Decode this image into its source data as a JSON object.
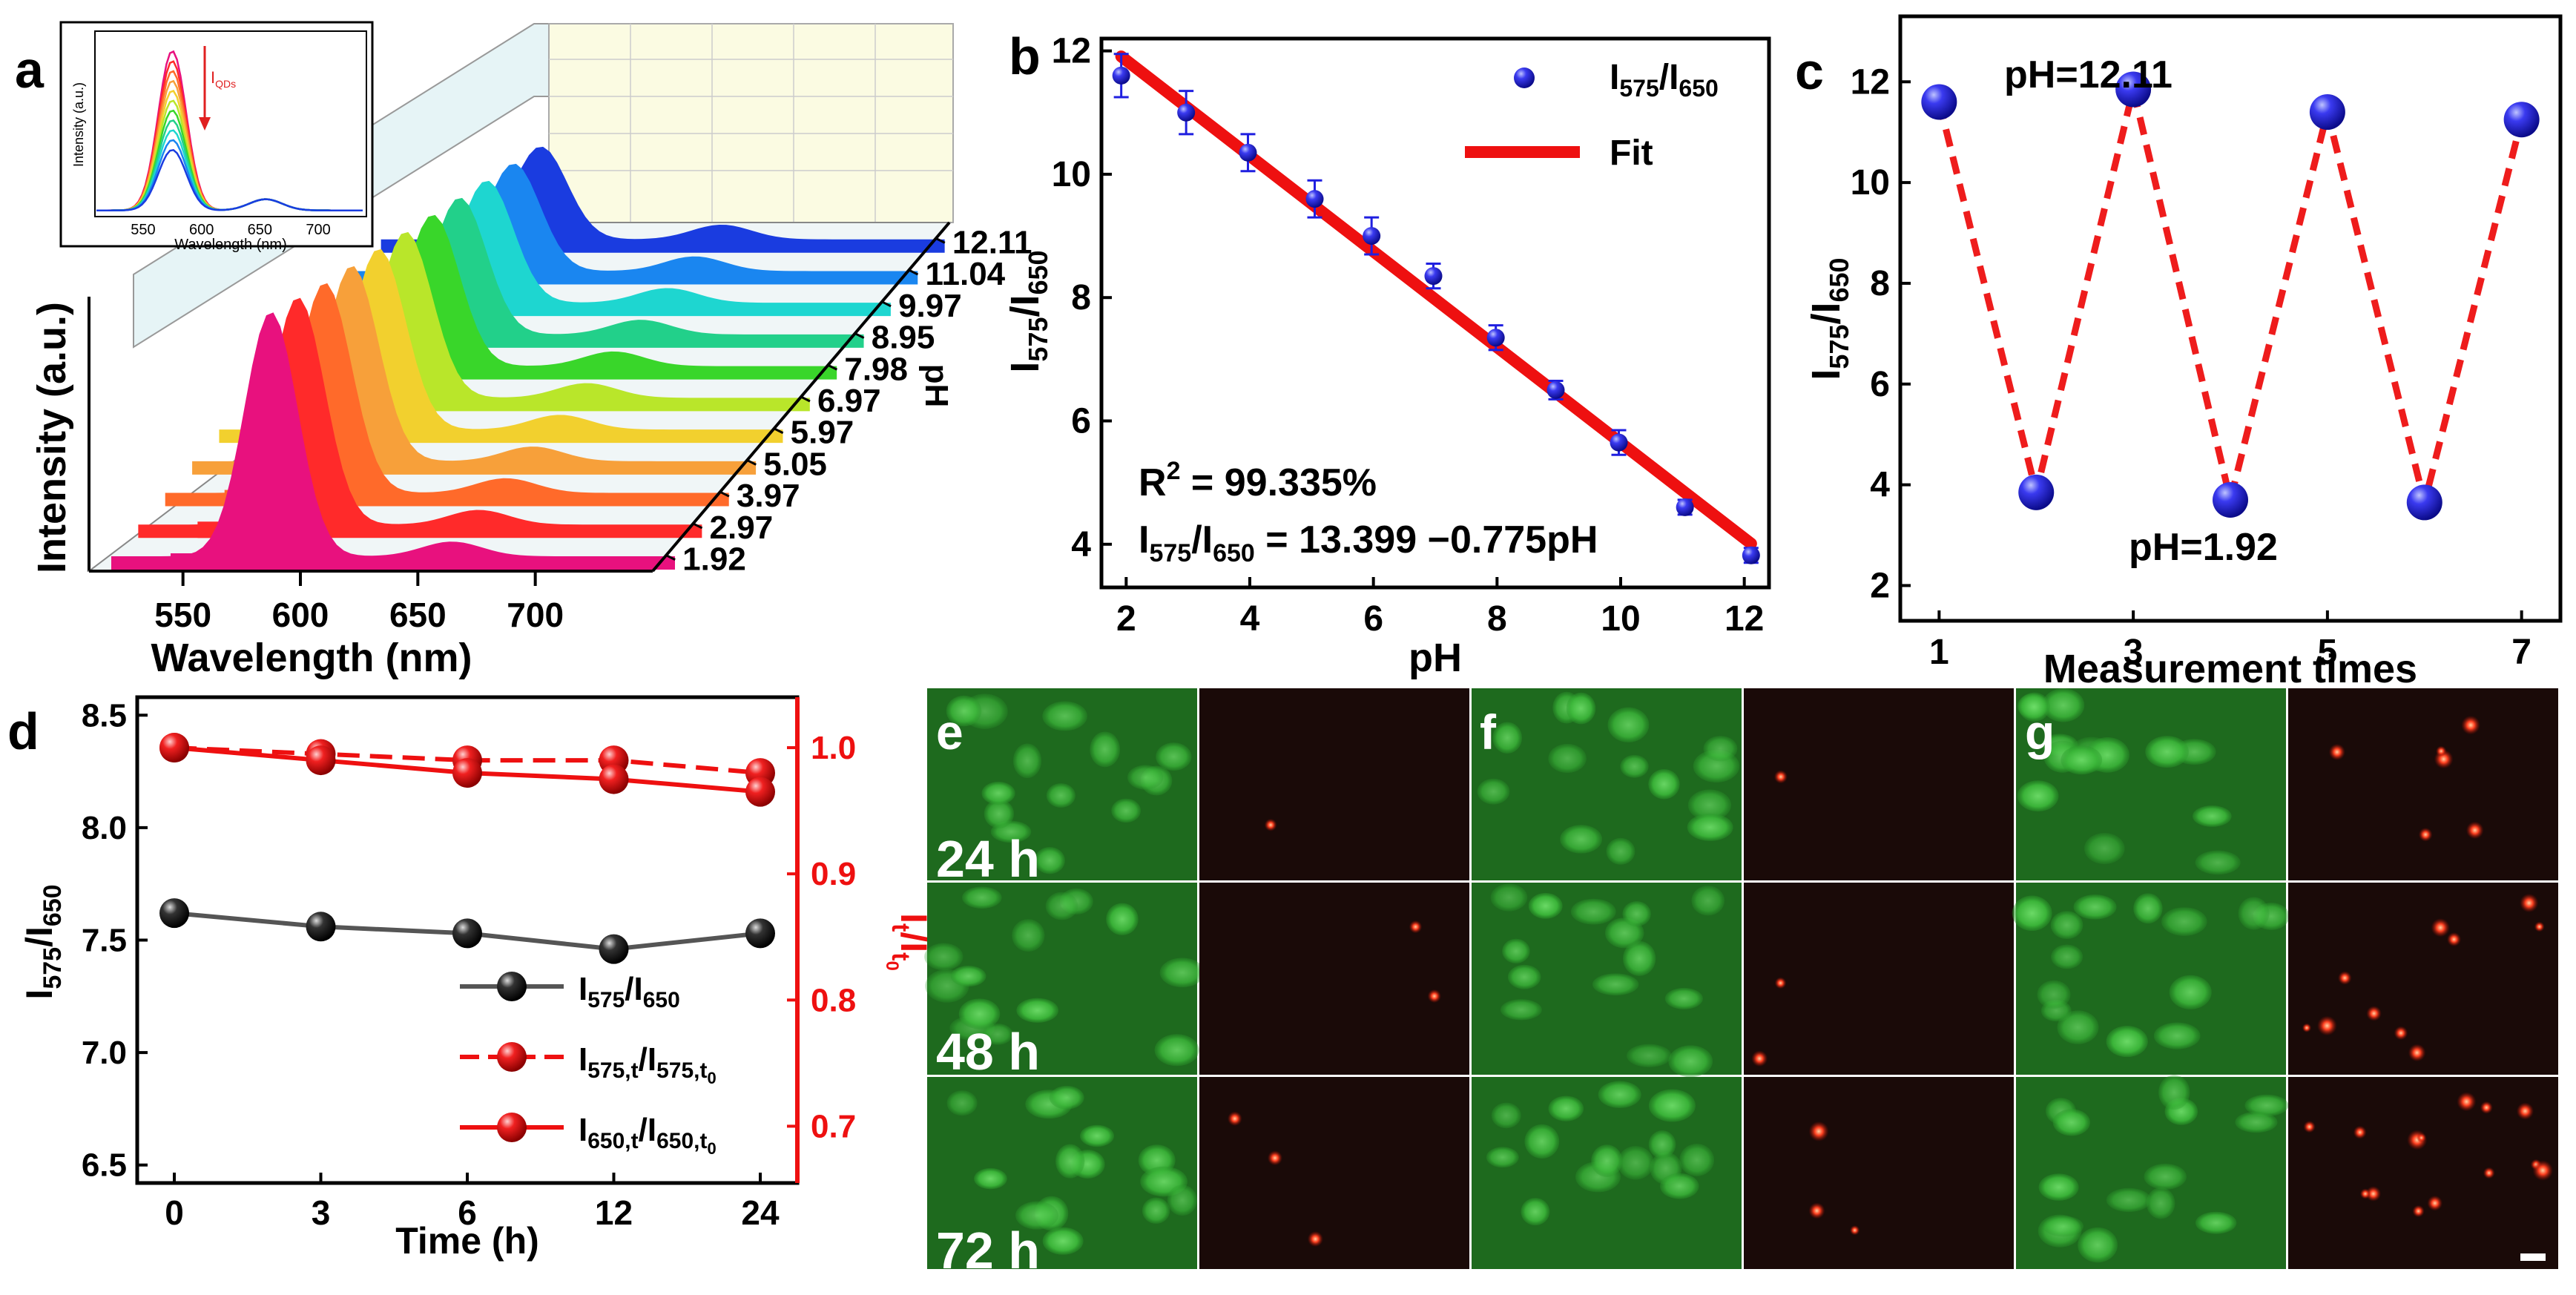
{
  "panel_letters": {
    "a": "a",
    "b": "b",
    "c": "c",
    "d": "d",
    "e": "e",
    "f": "f",
    "g": "g"
  },
  "chart_data": [
    {
      "panel": "a",
      "type": "line",
      "style": "3d waterfall",
      "xlabel": "Wavelength (nm)",
      "ylabel": "Intensity (a.u.)",
      "zlabel": "pH",
      "x_ticks": [
        "550",
        "600",
        "650",
        "700"
      ],
      "z_ticks": [
        "1.92",
        "2.97",
        "3.97",
        "5.05",
        "5.97",
        "6.97",
        "7.98",
        "8.95",
        "9.97",
        "11.04",
        "12.11"
      ],
      "series": [
        {
          "name": "1.92",
          "color": "#e8117e",
          "peak_x": 578,
          "peak_rel": 1.0,
          "second_rel": 0.06
        },
        {
          "name": "2.97",
          "color": "#ff2a2a",
          "peak_x": 578,
          "peak_rel": 0.93,
          "second_rel": 0.06
        },
        {
          "name": "3.97",
          "color": "#ff6a2a",
          "peak_x": 578,
          "peak_rel": 0.86,
          "second_rel": 0.06
        },
        {
          "name": "5.05",
          "color": "#f7a03a",
          "peak_x": 578,
          "peak_rel": 0.8,
          "second_rel": 0.06
        },
        {
          "name": "5.97",
          "color": "#f2d02e",
          "peak_x": 578,
          "peak_rel": 0.74,
          "second_rel": 0.06
        },
        {
          "name": "6.97",
          "color": "#b9e62a",
          "peak_x": 578,
          "peak_rel": 0.68,
          "second_rel": 0.06
        },
        {
          "name": "7.98",
          "color": "#39d62a",
          "peak_x": 578,
          "peak_rel": 0.62,
          "second_rel": 0.06
        },
        {
          "name": "8.95",
          "color": "#22d08a",
          "peak_x": 578,
          "peak_rel": 0.56,
          "second_rel": 0.06
        },
        {
          "name": "9.97",
          "color": "#1ed6d0",
          "peak_x": 578,
          "peak_rel": 0.5,
          "second_rel": 0.06
        },
        {
          "name": "11.04",
          "color": "#1a86f0",
          "peak_x": 578,
          "peak_rel": 0.44,
          "second_rel": 0.06
        },
        {
          "name": "12.11",
          "color": "#1a3ce0",
          "peak_x": 578,
          "peak_rel": 0.38,
          "second_rel": 0.06
        }
      ],
      "inset": {
        "xlabel": "Wavelength (nm)",
        "ylabel": "Intensity (a.u.)",
        "x_ticks": [
          "550",
          "600",
          "650",
          "700"
        ],
        "arrow_label": "I",
        "arrow_sub": "QDs",
        "colors": [
          "#e8117e",
          "#ff2a2a",
          "#ff6a2a",
          "#f7a03a",
          "#f2d02e",
          "#b9e62a",
          "#39d62a",
          "#22d08a",
          "#1ed6d0",
          "#1a86f0",
          "#1a3ce0"
        ]
      }
    },
    {
      "panel": "b",
      "type": "scatter",
      "xlabel": "pH",
      "ylabel_main": "I",
      "ylabel_sub1": "575",
      "ylabel_sep": "/I",
      "ylabel_sub2": "650",
      "xlim": [
        1.6,
        12.4
      ],
      "ylim": [
        3.3,
        12.2
      ],
      "x_ticks": [
        2,
        4,
        6,
        8,
        10,
        12
      ],
      "y_ticks": [
        4,
        6,
        8,
        10,
        12
      ],
      "series": [
        {
          "name_main": "I",
          "name_sub1": "575",
          "name_sep": "/I",
          "name_sub2": "650",
          "color": "#1f1fe0",
          "x": [
            1.92,
            2.97,
            3.97,
            5.05,
            5.97,
            6.97,
            7.98,
            8.95,
            9.97,
            11.04,
            12.11
          ],
          "y": [
            11.6,
            11.0,
            10.35,
            9.6,
            9.0,
            8.35,
            7.35,
            6.5,
            5.65,
            4.6,
            3.82
          ],
          "err": [
            0.35,
            0.35,
            0.3,
            0.3,
            0.3,
            0.2,
            0.2,
            0.15,
            0.2,
            0.12,
            0.12
          ]
        },
        {
          "name": "Fit",
          "color": "#ee1010",
          "x": [
            1.92,
            12.11
          ],
          "y": [
            11.91,
            4.01
          ]
        }
      ],
      "annotation_r2_main": "R",
      "annotation_r2_sup": "2",
      "annotation_r2_rest": " = 99.335%",
      "eq_main": "I",
      "eq_sub1": "575",
      "eq_sep": "/I",
      "eq_sub2": "650",
      "eq_rest": " = 13.399 −0.775pH"
    },
    {
      "panel": "c",
      "type": "scatter",
      "xlabel": "Measurement times",
      "ylabel_main": "I",
      "ylabel_sub1": "575",
      "ylabel_sep": "/I",
      "ylabel_sub2": "650",
      "xlim": [
        0.6,
        7.4
      ],
      "ylim": [
        1.3,
        13.3
      ],
      "x_ticks": [
        1,
        3,
        5,
        7
      ],
      "y_ticks": [
        2,
        4,
        6,
        8,
        10,
        12
      ],
      "x": [
        1,
        2,
        3,
        4,
        5,
        6,
        7
      ],
      "y": [
        11.6,
        3.85,
        11.85,
        3.7,
        11.4,
        3.65,
        11.25
      ],
      "marker_color": "#2323e8",
      "line_color": "#ee1c1c",
      "annotation_high": "pH=12.11",
      "annotation_low": "pH=1.92"
    },
    {
      "panel": "d",
      "type": "line",
      "xlabel": "Time (h)",
      "ylabel_left_main": "I",
      "ylabel_left_sub1": "575",
      "ylabel_left_sep": "/I",
      "ylabel_left_sub2": "650",
      "ylabel_right_main": "I",
      "ylabel_right_sub1": "t",
      "ylabel_right_sep": "/I",
      "ylabel_right_sub2": "t",
      "ylabel_right_subsub": "0",
      "categories": [
        "0",
        "3",
        "6",
        "12",
        "24"
      ],
      "ylim_left": [
        6.42,
        8.58
      ],
      "ylim_right": [
        0.655,
        1.04
      ],
      "y_ticks_left": [
        "6.5",
        "7.0",
        "7.5",
        "8.0",
        "8.5"
      ],
      "y_ticks_right": [
        "0.7",
        "0.8",
        "0.9",
        "1.0"
      ],
      "series": [
        {
          "axis": "left",
          "color": "#555555",
          "values": [
            7.62,
            7.56,
            7.53,
            7.46,
            7.53
          ],
          "leg_main": "I",
          "leg_sub1": "575",
          "leg_sep": "/I",
          "leg_sub2": "650"
        },
        {
          "axis": "right",
          "color": "#ee1010",
          "dashed": true,
          "values": [
            1.0,
            0.995,
            0.99,
            0.99,
            0.98
          ],
          "leg_main": "I",
          "leg_sub1": "575,t",
          "leg_sep": "/I",
          "leg_sub2": "575,t",
          "leg_subsub": "0"
        },
        {
          "axis": "right",
          "color": "#ee1010",
          "dashed": false,
          "values": [
            1.0,
            0.99,
            0.98,
            0.975,
            0.965
          ],
          "leg_main": "I",
          "leg_sub1": "650,t",
          "leg_sep": "/I",
          "leg_sub2": "650,t",
          "leg_subsub": "0"
        }
      ]
    }
  ],
  "micrographs": {
    "row_labels": [
      "24 h",
      "48 h",
      "72 h"
    ]
  }
}
